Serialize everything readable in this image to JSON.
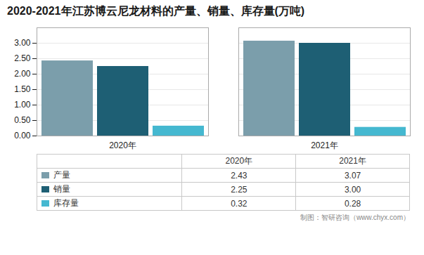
{
  "chart_data": {
    "type": "bar",
    "title": "2020-2021年江苏博云尼龙材料的产量、销量、库存量(万吨)",
    "categories": [
      "2020年",
      "2021年"
    ],
    "series": [
      {
        "name": "产量",
        "color": "#7b9eab",
        "values": [
          2.43,
          3.07
        ],
        "value_labels": [
          "2.43",
          "3.07"
        ]
      },
      {
        "name": "销量",
        "color": "#1e5f74",
        "values": [
          2.25,
          3.0
        ],
        "value_labels": [
          "2.25",
          "3.00"
        ]
      },
      {
        "name": "库存量",
        "color": "#45b8d0",
        "values": [
          0.32,
          0.28
        ],
        "value_labels": [
          "0.32",
          "0.28"
        ]
      }
    ],
    "ylim": [
      0,
      3.5
    ],
    "yticks": [
      {
        "value": 0,
        "label": "0.00"
      },
      {
        "value": 0.5,
        "label": "0.50"
      },
      {
        "value": 1,
        "label": "1.00"
      },
      {
        "value": 1.5,
        "label": "1.50"
      },
      {
        "value": 2,
        "label": "2.00"
      },
      {
        "value": 2.5,
        "label": "2.50"
      },
      {
        "value": 3,
        "label": "3.00"
      }
    ],
    "grid": true,
    "legend": "bottom",
    "caption": "制图：智研咨询（www.chyx.com）"
  }
}
